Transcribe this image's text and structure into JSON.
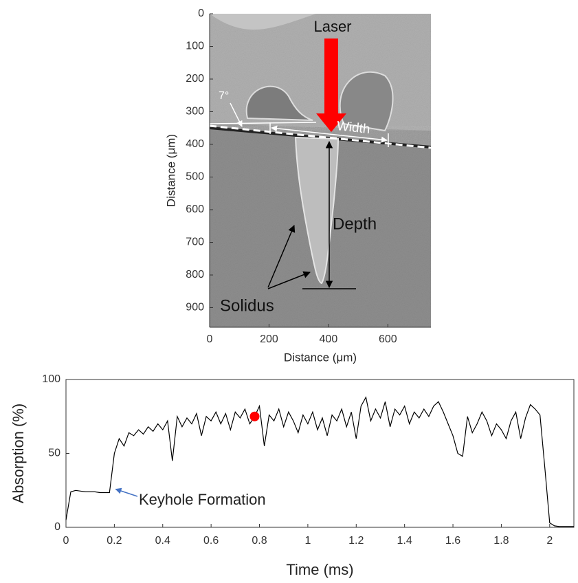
{
  "chart_data": [
    {
      "type": "image",
      "xlabel": "Distance (μm)",
      "ylabel": "Distance (μm)",
      "xlim": [
        0,
        745
      ],
      "ylim": [
        0,
        960
      ],
      "xticks": [
        0,
        200,
        400,
        600
      ],
      "yticks": [
        0,
        100,
        200,
        300,
        400,
        500,
        600,
        700,
        800,
        900
      ],
      "annotations": [
        "Laser",
        "7°",
        "Width",
        "Depth",
        "Solidus"
      ]
    },
    {
      "type": "line",
      "xlabel": "Time (ms)",
      "ylabel": "Absorption (%)",
      "xlim": [
        0,
        2.1
      ],
      "ylim": [
        0,
        100
      ],
      "xticks": [
        0,
        0.2,
        0.4,
        0.6,
        0.8,
        1,
        1.2,
        1.4,
        1.6,
        1.8,
        2
      ],
      "yticks": [
        0,
        50,
        100
      ],
      "color": "#000000",
      "x": [
        0,
        0.02,
        0.04,
        0.06,
        0.08,
        0.1,
        0.12,
        0.14,
        0.16,
        0.18,
        0.2,
        0.22,
        0.24,
        0.26,
        0.28,
        0.3,
        0.32,
        0.34,
        0.36,
        0.38,
        0.4,
        0.42,
        0.44,
        0.46,
        0.48,
        0.5,
        0.52,
        0.54,
        0.56,
        0.58,
        0.6,
        0.62,
        0.64,
        0.66,
        0.68,
        0.7,
        0.72,
        0.74,
        0.76,
        0.78,
        0.8,
        0.82,
        0.84,
        0.86,
        0.88,
        0.9,
        0.92,
        0.94,
        0.96,
        0.98,
        1,
        1.02,
        1.04,
        1.06,
        1.08,
        1.1,
        1.12,
        1.14,
        1.16,
        1.18,
        1.2,
        1.22,
        1.24,
        1.26,
        1.28,
        1.3,
        1.32,
        1.34,
        1.36,
        1.38,
        1.4,
        1.42,
        1.44,
        1.46,
        1.48,
        1.5,
        1.52,
        1.54,
        1.56,
        1.58,
        1.6,
        1.62,
        1.64,
        1.66,
        1.68,
        1.7,
        1.72,
        1.74,
        1.76,
        1.78,
        1.8,
        1.82,
        1.84,
        1.86,
        1.88,
        1.9,
        1.92,
        1.94,
        1.96,
        1.98,
        2,
        2.02,
        2.04,
        2.06,
        2.08,
        2.1
      ],
      "values": [
        5,
        24,
        25,
        24.5,
        24,
        24,
        24,
        23.5,
        23.5,
        23.5,
        50,
        60,
        55,
        64,
        62,
        66,
        63,
        68,
        65,
        70,
        66,
        72,
        45,
        75,
        68,
        74,
        70,
        77,
        62,
        75,
        72,
        78,
        70,
        77,
        66,
        78,
        74,
        80,
        70,
        75,
        82,
        55,
        76,
        72,
        80,
        68,
        78,
        72,
        64,
        76,
        70,
        78,
        66,
        74,
        62,
        76,
        72,
        80,
        68,
        78,
        60,
        82,
        88,
        72,
        80,
        74,
        85,
        68,
        80,
        76,
        82,
        70,
        78,
        74,
        80,
        75,
        82,
        85,
        78,
        70,
        62,
        50,
        48,
        75,
        64,
        70,
        78,
        72,
        62,
        70,
        66,
        60,
        72,
        78,
        60,
        74,
        83,
        80,
        76,
        40,
        3,
        1,
        0.5,
        0.5,
        0.5,
        0.5
      ],
      "highlight": {
        "x": 0.78,
        "y": 75,
        "color": "#ff0000"
      },
      "annotation": "Keyhole Formation"
    }
  ]
}
